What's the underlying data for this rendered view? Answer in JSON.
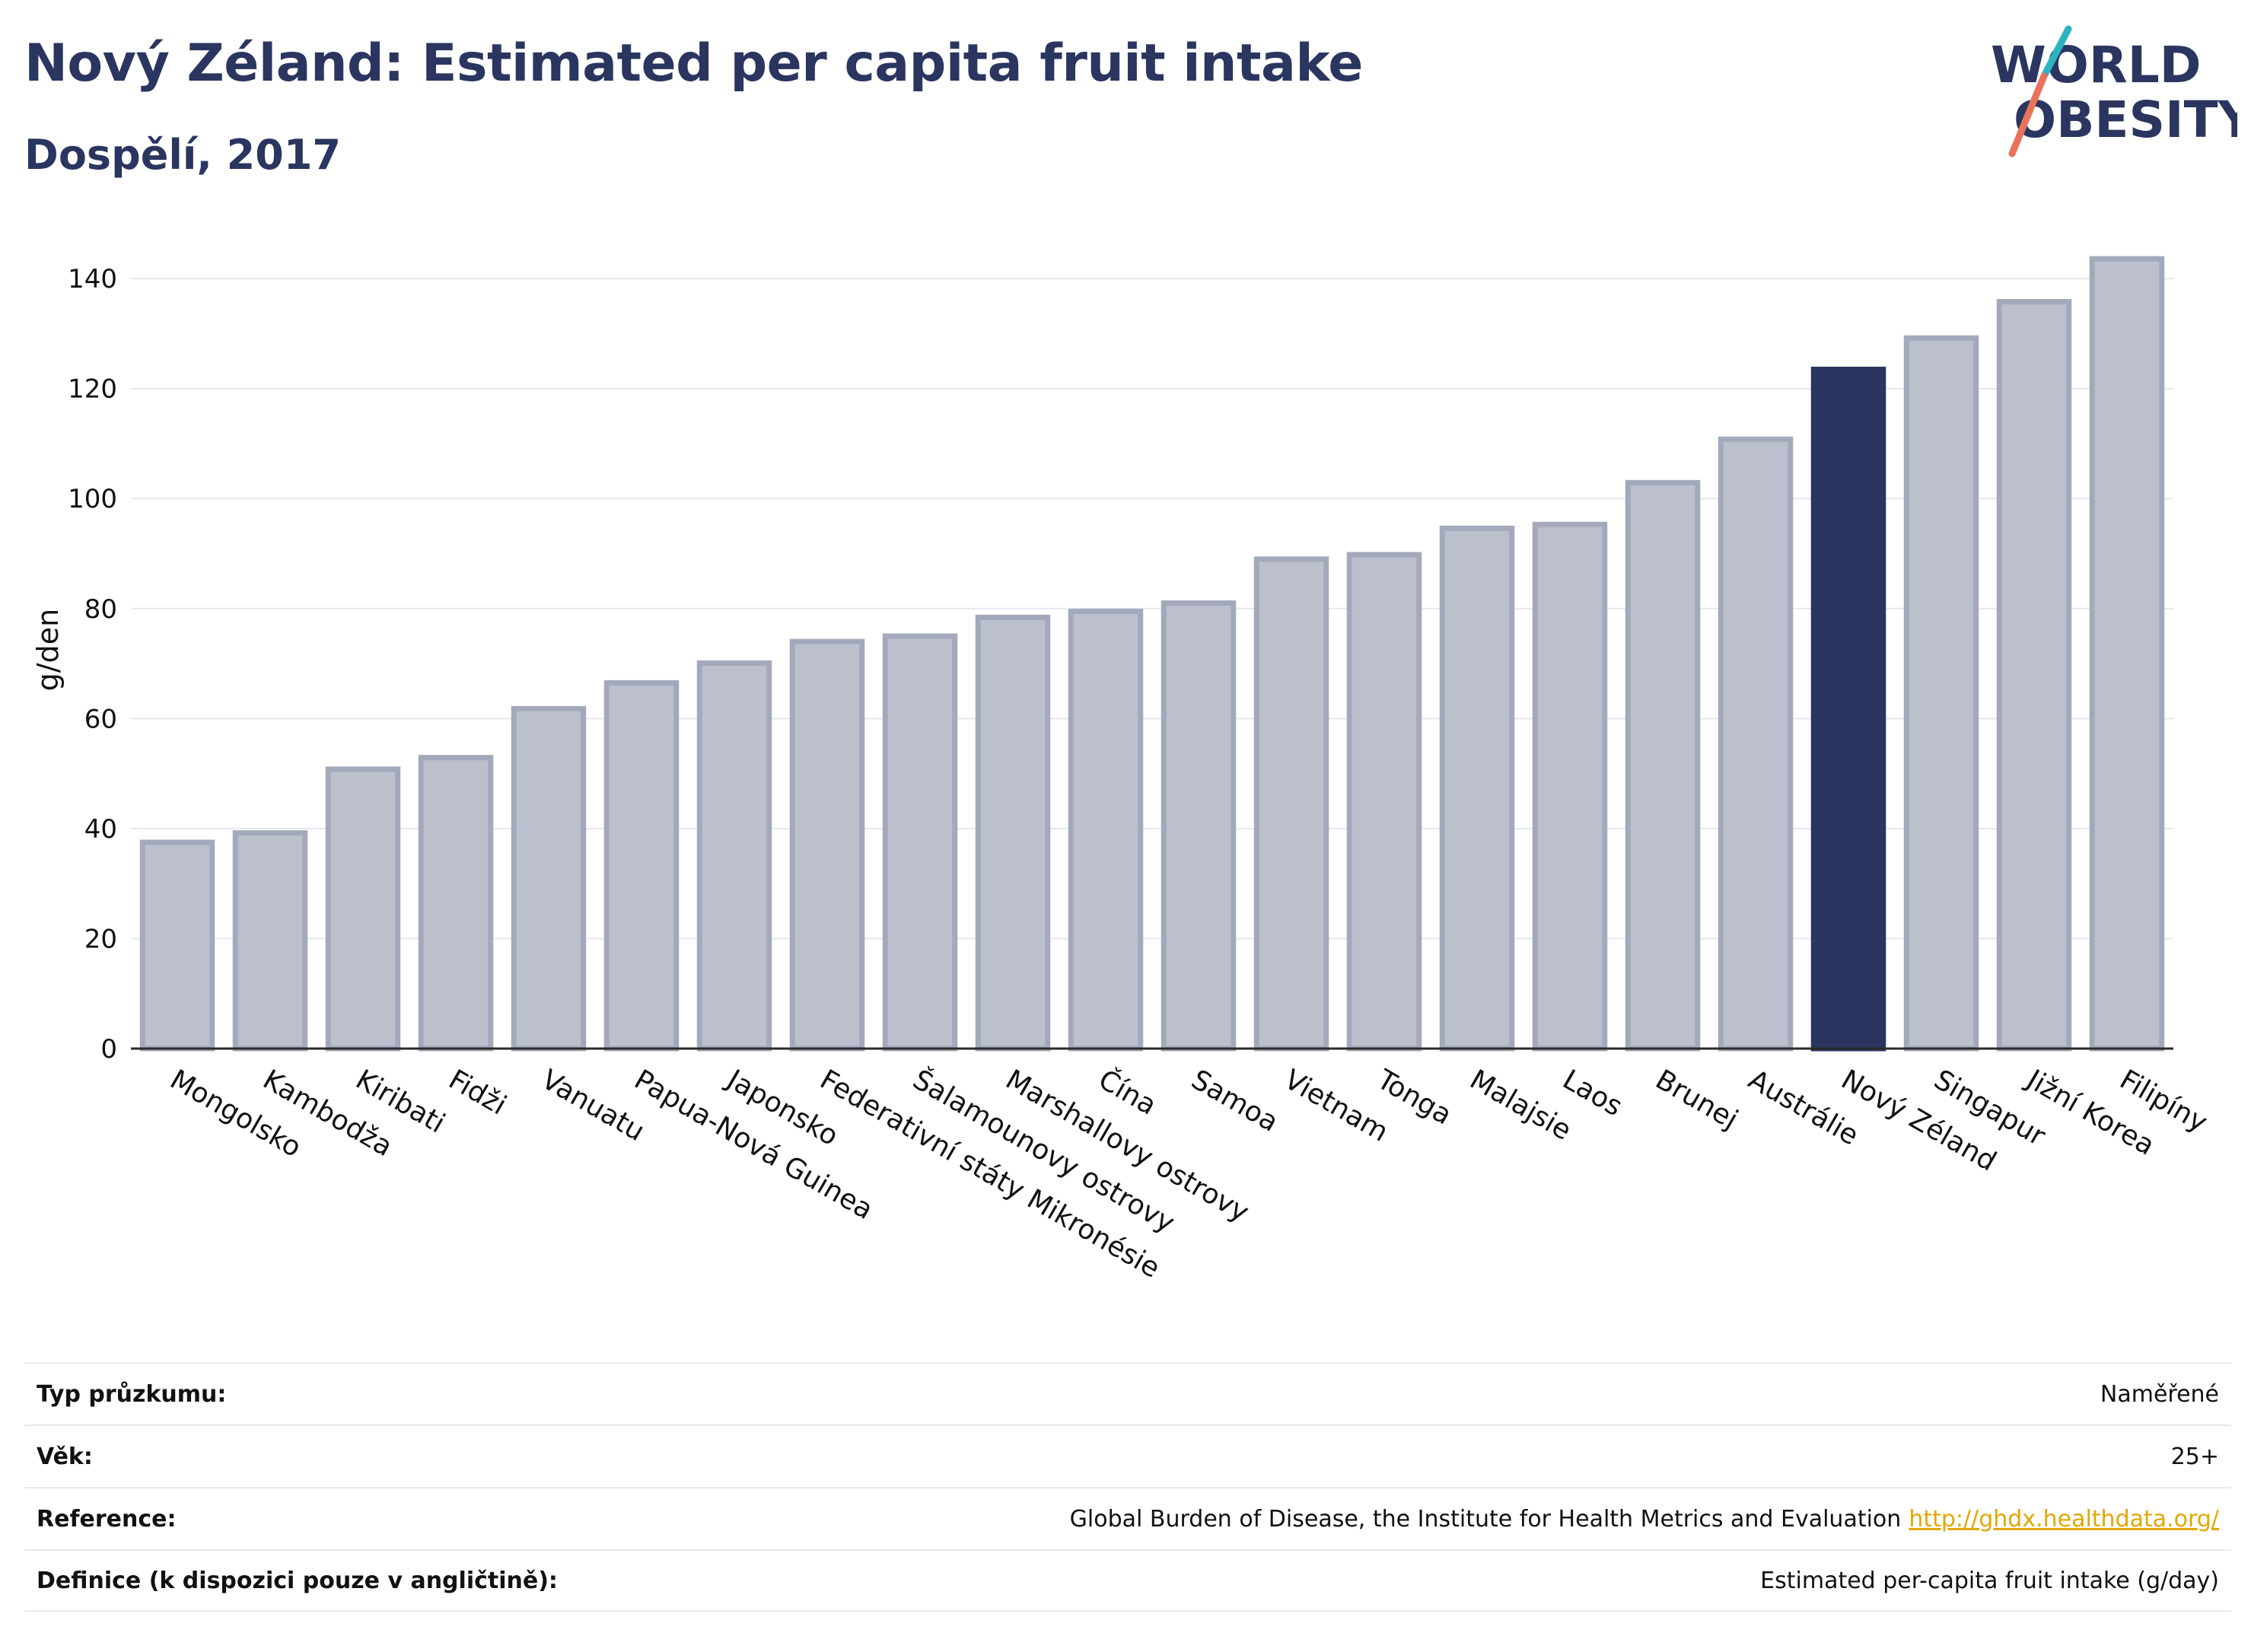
{
  "header": {
    "title": "Nový Zéland: Estimated per capita fruit intake",
    "subtitle": "Dospělí, 2017"
  },
  "logo": {
    "line1": "WORLD",
    "line2": "OBESITY"
  },
  "colors": {
    "bar": "#bcc0cd",
    "bar_border": "#a3a9bb",
    "highlight": "#2a3560",
    "title": "#2a3560",
    "grid": "#e6e8ee",
    "logo_teal": "#2ab3c0",
    "logo_coral": "#e8735a",
    "link": "#e0a800"
  },
  "chart_data": {
    "type": "bar",
    "ylabel": "g/den",
    "ylim": [
      0,
      145
    ],
    "yticks": [
      0,
      20,
      40,
      60,
      80,
      100,
      120,
      140
    ],
    "grid": true,
    "highlight": "Nový Zéland",
    "categories": [
      "Mongolsko",
      "Kambodža",
      "Kiribati",
      "Fidži",
      "Vanuatu",
      "Papua-Nová Guinea",
      "Japonsko",
      "Federativní státy Mikronésie",
      "Šalamounovy ostrovy",
      "Marshallovy ostrovy",
      "Čína",
      "Samoa",
      "Vietnam",
      "Tonga",
      "Malajsie",
      "Laos",
      "Brunej",
      "Austrálie",
      "Nový Zéland",
      "Singapur",
      "Jižní Korea",
      "Filipíny"
    ],
    "values": [
      37.5,
      39.2,
      50.8,
      52.9,
      61.8,
      66.5,
      70.1,
      74.0,
      75.0,
      78.4,
      79.5,
      81.0,
      89.0,
      89.8,
      94.6,
      95.3,
      102.9,
      110.8,
      123.5,
      129.2,
      135.8,
      143.6
    ]
  },
  "meta": {
    "rows": [
      {
        "label": "Typ průzkumu:",
        "value": "Naměřené"
      },
      {
        "label": "Věk:",
        "value": "25+"
      },
      {
        "label": "Reference:",
        "value": "Global Burden of Disease, the Institute for Health Metrics and Evaluation",
        "link": "http://ghdx.healthdata.org/"
      },
      {
        "label": "Definice (k dispozici pouze v angličtině):",
        "value": "Estimated per-capita fruit intake (g/day)"
      }
    ]
  }
}
